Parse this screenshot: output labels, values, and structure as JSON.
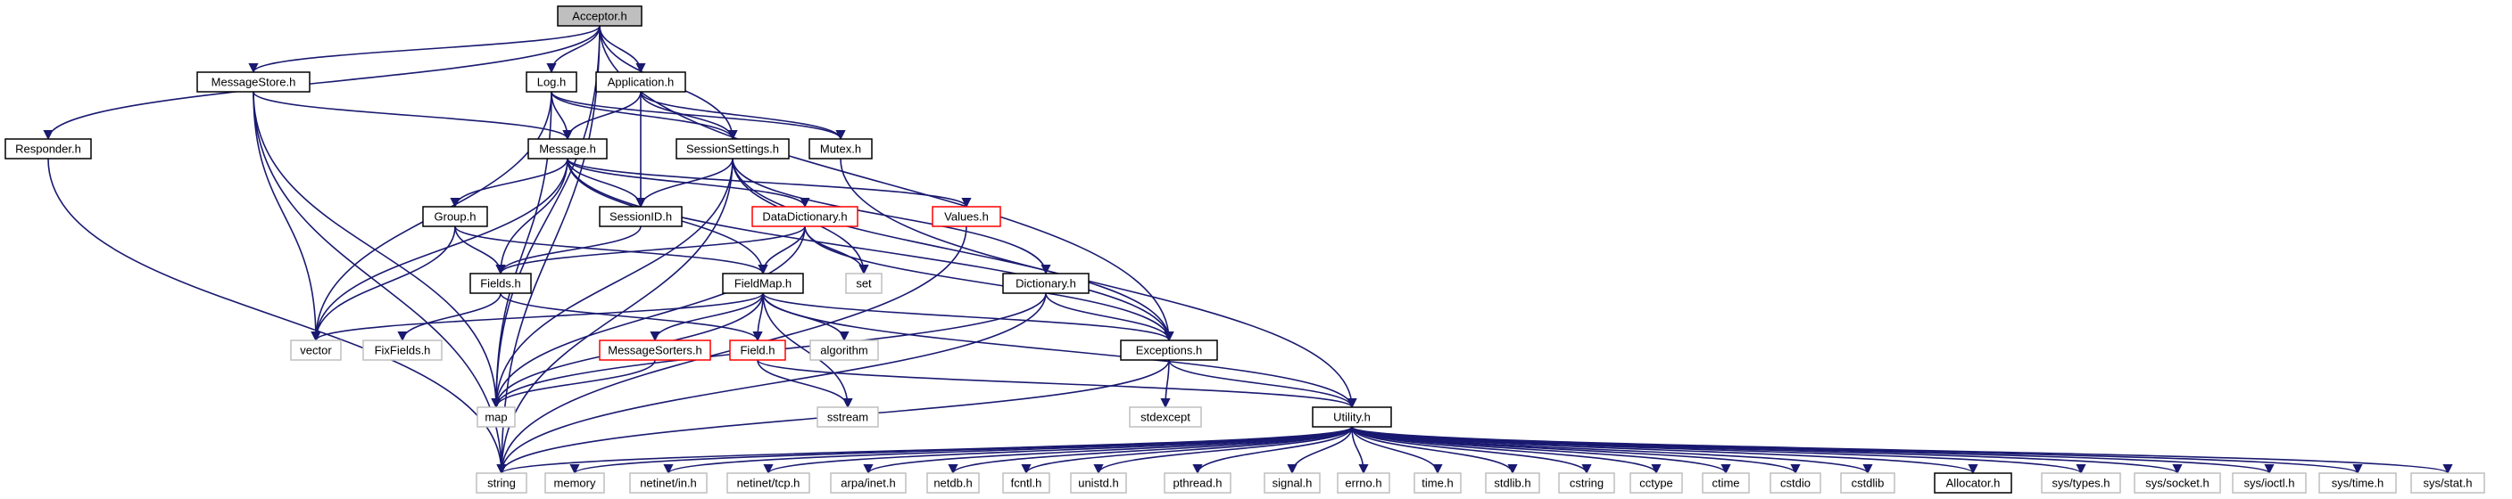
{
  "graph": {
    "edge_color": "#191970",
    "root_fill": "#bfbfbf",
    "box_colors": {
      "normal": "#000000",
      "truncated": "#ff0000",
      "ghost": "#bfbfbf"
    },
    "nodes": [
      {
        "id": "acceptor",
        "label": "Acceptor.h",
        "style": "root"
      },
      {
        "id": "responder",
        "label": "Responder.h",
        "style": "normal"
      },
      {
        "id": "messagestore",
        "label": "MessageStore.h",
        "style": "normal"
      },
      {
        "id": "log",
        "label": "Log.h",
        "style": "normal"
      },
      {
        "id": "application",
        "label": "Application.h",
        "style": "normal"
      },
      {
        "id": "message",
        "label": "Message.h",
        "style": "normal"
      },
      {
        "id": "sessionsettings",
        "label": "SessionSettings.h",
        "style": "normal"
      },
      {
        "id": "mutex",
        "label": "Mutex.h",
        "style": "normal"
      },
      {
        "id": "group",
        "label": "Group.h",
        "style": "normal"
      },
      {
        "id": "sessionid",
        "label": "SessionID.h",
        "style": "normal"
      },
      {
        "id": "datadictionary",
        "label": "DataDictionary.h",
        "style": "truncated"
      },
      {
        "id": "values",
        "label": "Values.h",
        "style": "truncated"
      },
      {
        "id": "fields",
        "label": "Fields.h",
        "style": "normal"
      },
      {
        "id": "fieldmap",
        "label": "FieldMap.h",
        "style": "normal"
      },
      {
        "id": "set",
        "label": "set",
        "style": "ghost"
      },
      {
        "id": "dictionary",
        "label": "Dictionary.h",
        "style": "normal"
      },
      {
        "id": "vector",
        "label": "vector",
        "style": "ghost"
      },
      {
        "id": "fixfields",
        "label": "FixFields.h",
        "style": "ghost"
      },
      {
        "id": "messagesorters",
        "label": "MessageSorters.h",
        "style": "truncated"
      },
      {
        "id": "field",
        "label": "Field.h",
        "style": "truncated"
      },
      {
        "id": "algorithm",
        "label": "algorithm",
        "style": "ghost"
      },
      {
        "id": "exceptions",
        "label": "Exceptions.h",
        "style": "normal"
      },
      {
        "id": "map",
        "label": "map",
        "style": "ghost"
      },
      {
        "id": "sstream",
        "label": "sstream",
        "style": "ghost"
      },
      {
        "id": "stdexcept",
        "label": "stdexcept",
        "style": "ghost"
      },
      {
        "id": "utility",
        "label": "Utility.h",
        "style": "normal"
      },
      {
        "id": "string",
        "label": "string",
        "style": "ghost"
      },
      {
        "id": "memory",
        "label": "memory",
        "style": "ghost"
      },
      {
        "id": "netinet_in",
        "label": "netinet/in.h",
        "style": "ghost"
      },
      {
        "id": "netinet_tcp",
        "label": "netinet/tcp.h",
        "style": "ghost"
      },
      {
        "id": "arpa_inet",
        "label": "arpa/inet.h",
        "style": "ghost"
      },
      {
        "id": "netdb",
        "label": "netdb.h",
        "style": "ghost"
      },
      {
        "id": "fcntl",
        "label": "fcntl.h",
        "style": "ghost"
      },
      {
        "id": "unistd",
        "label": "unistd.h",
        "style": "ghost"
      },
      {
        "id": "pthread",
        "label": "pthread.h",
        "style": "ghost"
      },
      {
        "id": "signal",
        "label": "signal.h",
        "style": "ghost"
      },
      {
        "id": "errno",
        "label": "errno.h",
        "style": "ghost"
      },
      {
        "id": "time",
        "label": "time.h",
        "style": "ghost"
      },
      {
        "id": "stdlib",
        "label": "stdlib.h",
        "style": "ghost"
      },
      {
        "id": "cstring",
        "label": "cstring",
        "style": "ghost"
      },
      {
        "id": "cctype",
        "label": "cctype",
        "style": "ghost"
      },
      {
        "id": "ctime",
        "label": "ctime",
        "style": "ghost"
      },
      {
        "id": "cstdio",
        "label": "cstdio",
        "style": "ghost"
      },
      {
        "id": "cstdlib",
        "label": "cstdlib",
        "style": "ghost"
      },
      {
        "id": "allocator",
        "label": "Allocator.h",
        "style": "normal"
      },
      {
        "id": "sys_types",
        "label": "sys/types.h",
        "style": "ghost"
      },
      {
        "id": "sys_socket",
        "label": "sys/socket.h",
        "style": "ghost"
      },
      {
        "id": "sys_ioctl",
        "label": "sys/ioctl.h",
        "style": "ghost"
      },
      {
        "id": "sys_time",
        "label": "sys/time.h",
        "style": "ghost"
      },
      {
        "id": "sys_stat",
        "label": "sys/stat.h",
        "style": "ghost"
      }
    ],
    "edges": [
      [
        "acceptor",
        "responder"
      ],
      [
        "acceptor",
        "messagestore"
      ],
      [
        "acceptor",
        "log"
      ],
      [
        "acceptor",
        "application"
      ],
      [
        "acceptor",
        "sessionsettings"
      ],
      [
        "acceptor",
        "exceptions"
      ],
      [
        "acceptor",
        "map"
      ],
      [
        "acceptor",
        "string"
      ],
      [
        "responder",
        "string"
      ],
      [
        "messagestore",
        "message"
      ],
      [
        "messagestore",
        "vector"
      ],
      [
        "messagestore",
        "map"
      ],
      [
        "messagestore",
        "string"
      ],
      [
        "log",
        "message"
      ],
      [
        "log",
        "sessionsettings"
      ],
      [
        "log",
        "mutex"
      ],
      [
        "log",
        "vector"
      ],
      [
        "log",
        "map"
      ],
      [
        "application",
        "message"
      ],
      [
        "application",
        "sessionid"
      ],
      [
        "application",
        "sessionsettings"
      ],
      [
        "application",
        "mutex"
      ],
      [
        "message",
        "group"
      ],
      [
        "message",
        "sessionid"
      ],
      [
        "message",
        "datadictionary"
      ],
      [
        "message",
        "values"
      ],
      [
        "message",
        "fields"
      ],
      [
        "message",
        "fieldmap"
      ],
      [
        "message",
        "vector"
      ],
      [
        "message",
        "exceptions"
      ],
      [
        "sessionsettings",
        "sessionid"
      ],
      [
        "sessionsettings",
        "dictionary"
      ],
      [
        "sessionsettings",
        "set"
      ],
      [
        "sessionsettings",
        "exceptions"
      ],
      [
        "sessionsettings",
        "map"
      ],
      [
        "sessionsettings",
        "string"
      ],
      [
        "mutex",
        "utility"
      ],
      [
        "group",
        "fields"
      ],
      [
        "group",
        "fieldmap"
      ],
      [
        "group",
        "vector"
      ],
      [
        "sessionid",
        "fields"
      ],
      [
        "datadictionary",
        "fields"
      ],
      [
        "datadictionary",
        "fieldmap"
      ],
      [
        "datadictionary",
        "set"
      ],
      [
        "datadictionary",
        "exceptions"
      ],
      [
        "datadictionary",
        "map"
      ],
      [
        "values",
        "string"
      ],
      [
        "fields",
        "fixfields"
      ],
      [
        "fields",
        "field"
      ],
      [
        "fieldmap",
        "vector"
      ],
      [
        "fieldmap",
        "messagesorters"
      ],
      [
        "fieldmap",
        "field"
      ],
      [
        "fieldmap",
        "algorithm"
      ],
      [
        "fieldmap",
        "exceptions"
      ],
      [
        "fieldmap",
        "utility"
      ],
      [
        "fieldmap",
        "map"
      ],
      [
        "fieldmap",
        "sstream"
      ],
      [
        "dictionary",
        "exceptions"
      ],
      [
        "dictionary",
        "map"
      ],
      [
        "dictionary",
        "string"
      ],
      [
        "messagesorters",
        "map"
      ],
      [
        "field",
        "sstream"
      ],
      [
        "field",
        "utility"
      ],
      [
        "exceptions",
        "stdexcept"
      ],
      [
        "exceptions",
        "utility"
      ],
      [
        "exceptions",
        "string"
      ],
      [
        "utility",
        "string"
      ],
      [
        "utility",
        "memory"
      ],
      [
        "utility",
        "netinet_in"
      ],
      [
        "utility",
        "netinet_tcp"
      ],
      [
        "utility",
        "arpa_inet"
      ],
      [
        "utility",
        "netdb"
      ],
      [
        "utility",
        "fcntl"
      ],
      [
        "utility",
        "unistd"
      ],
      [
        "utility",
        "pthread"
      ],
      [
        "utility",
        "signal"
      ],
      [
        "utility",
        "errno"
      ],
      [
        "utility",
        "time"
      ],
      [
        "utility",
        "stdlib"
      ],
      [
        "utility",
        "cstring"
      ],
      [
        "utility",
        "cctype"
      ],
      [
        "utility",
        "ctime"
      ],
      [
        "utility",
        "cstdio"
      ],
      [
        "utility",
        "cstdlib"
      ],
      [
        "utility",
        "allocator"
      ],
      [
        "utility",
        "sys_types"
      ],
      [
        "utility",
        "sys_socket"
      ],
      [
        "utility",
        "sys_ioctl"
      ],
      [
        "utility",
        "sys_time"
      ],
      [
        "utility",
        "sys_stat"
      ]
    ]
  }
}
